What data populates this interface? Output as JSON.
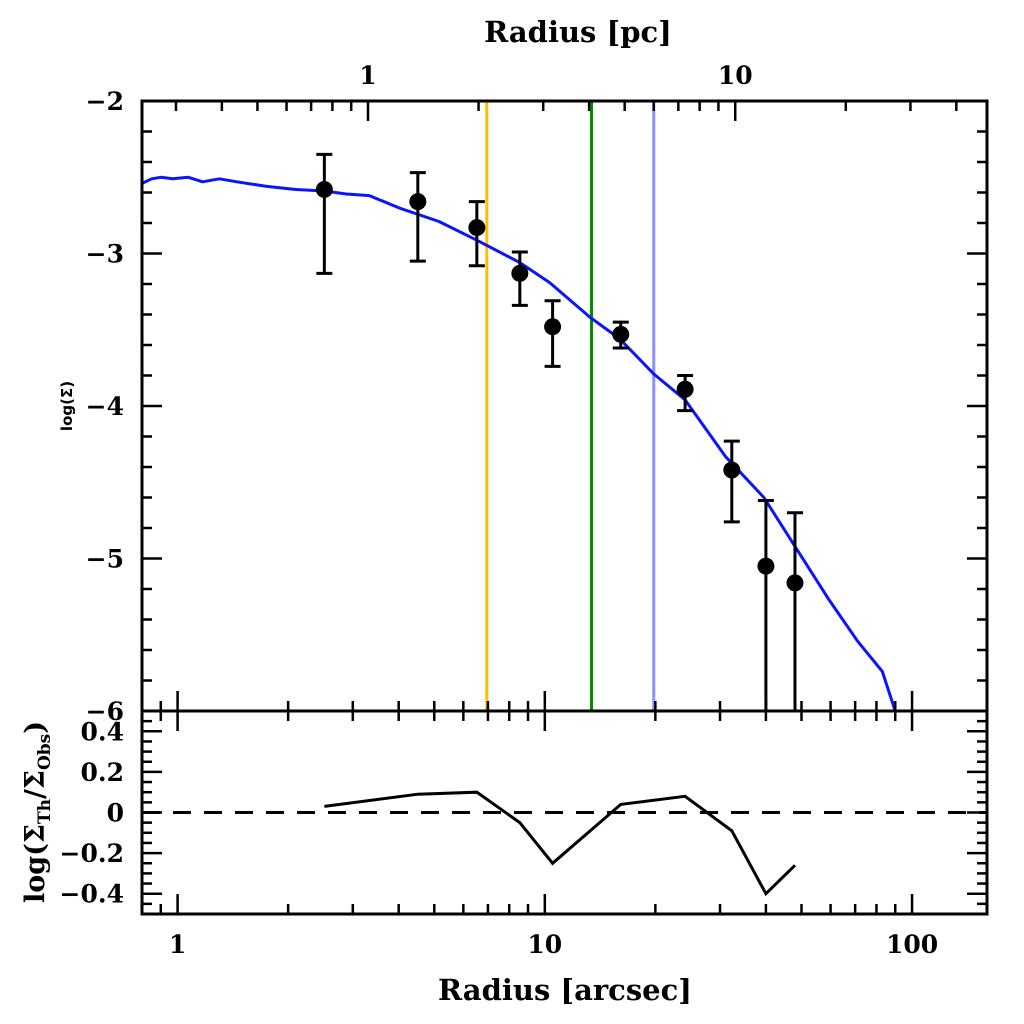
{
  "chart_data": [
    {
      "panel": "profile",
      "type": "scatter",
      "title": "",
      "xlabel": "Radius [arcsec]",
      "ylabel": "log(Σ)",
      "top_xlabel": "Radius [pc]",
      "xscale": "log",
      "xlim": [
        0.8,
        160
      ],
      "ylim": [
        -6,
        -2
      ],
      "top_xlim_pc": [
        0.245,
        47
      ],
      "yticks": [
        -2,
        -3,
        -4,
        -5,
        -6
      ],
      "ytick_labels": [
        "−2",
        "−3",
        "−4",
        "−5",
        "−6"
      ],
      "top_xticks_pc": [
        1,
        10
      ],
      "top_xtick_labels": [
        "1",
        "10"
      ],
      "top_minor_ticks_pc": [
        0.3,
        0.4,
        0.5,
        0.6,
        0.7,
        0.8,
        0.9,
        2,
        3,
        4,
        5,
        6,
        7,
        8,
        9,
        20,
        30,
        40
      ],
      "arcsec_per_pc": 3.3,
      "grid": false,
      "series": [
        {
          "name": "observed",
          "kind": "points_with_errorbars",
          "color": "#000000",
          "x": [
            2.51,
            4.51,
            6.53,
            8.55,
            10.5,
            16.1,
            24.1,
            32.3,
            40.0,
            48.0
          ],
          "y": [
            -2.58,
            -2.66,
            -2.83,
            -3.13,
            -3.48,
            -3.53,
            -3.89,
            -4.42,
            -5.05,
            -5.16
          ],
          "y_err_upper": [
            -2.35,
            -2.47,
            -2.66,
            -2.99,
            -3.31,
            -3.45,
            -3.8,
            -4.23,
            -4.62,
            -4.7
          ],
          "y_err_lower": [
            -3.13,
            -3.05,
            -3.08,
            -3.34,
            -3.74,
            -3.62,
            -4.03,
            -4.76,
            -6.5,
            -6.5
          ]
        },
        {
          "name": "model",
          "kind": "line",
          "color": "#0a14ff",
          "x": [
            0.8,
            0.85,
            0.9,
            0.97,
            1.07,
            1.17,
            1.3,
            1.45,
            1.75,
            2.1,
            2.51,
            2.88,
            3.33,
            4.0,
            5.15,
            6.5,
            8.55,
            10.3,
            13.3,
            16.0,
            19.8,
            24.1,
            31.0,
            39.5,
            47.7,
            59.0,
            71.0,
            83.0,
            90.0
          ],
          "y": [
            -2.54,
            -2.51,
            -2.5,
            -2.51,
            -2.5,
            -2.53,
            -2.51,
            -2.53,
            -2.56,
            -2.58,
            -2.59,
            -2.61,
            -2.62,
            -2.7,
            -2.79,
            -2.91,
            -3.06,
            -3.19,
            -3.42,
            -3.56,
            -3.79,
            -3.96,
            -4.33,
            -4.6,
            -4.91,
            -5.26,
            -5.54,
            -5.74,
            -6.0
          ]
        }
      ],
      "vertical_lines": [
        {
          "name": "orange-radius",
          "x": 6.95,
          "color": "#ffbf00"
        },
        {
          "name": "green-radius",
          "x": 13.4,
          "color": "#008c00"
        },
        {
          "name": "lightblue-radius",
          "x": 19.8,
          "color": "#8f8fff"
        }
      ]
    },
    {
      "panel": "residuals",
      "type": "line",
      "xlabel": "Radius [arcsec]",
      "ylabel": "log(ΣTh/ΣObs)",
      "xscale": "log",
      "xlim": [
        0.8,
        160
      ],
      "ylim": [
        -0.5,
        0.5
      ],
      "yticks": [
        0.4,
        0.2,
        0,
        -0.2,
        -0.4
      ],
      "ytick_labels": [
        "0.4",
        "0.2",
        "0",
        "−0.2",
        "−0.4"
      ],
      "xticks": [
        1,
        10,
        100
      ],
      "xtick_labels": [
        "1",
        "10",
        "100"
      ],
      "reference_line": {
        "y": 0,
        "style": "dashed"
      },
      "series": [
        {
          "name": "residual",
          "color": "#000000",
          "x": [
            2.51,
            4.51,
            6.53,
            8.55,
            10.5,
            16.1,
            24.1,
            32.3,
            40.0,
            48.0
          ],
          "y": [
            0.03,
            0.09,
            0.1,
            -0.05,
            -0.25,
            0.04,
            0.08,
            -0.09,
            -0.4,
            -0.26
          ]
        }
      ]
    }
  ],
  "labels": {
    "top_axis_title": "Radius [pc]",
    "bottom_axis_title": "Radius [arcsec]",
    "main_ylabel": "log(Σ)",
    "resid_ylabel_prefix": "log(Σ",
    "resid_ylabel_sub1": "Th",
    "resid_ylabel_mid": "/Σ",
    "resid_ylabel_sub2": "Obs",
    "resid_ylabel_suffix": ")"
  }
}
